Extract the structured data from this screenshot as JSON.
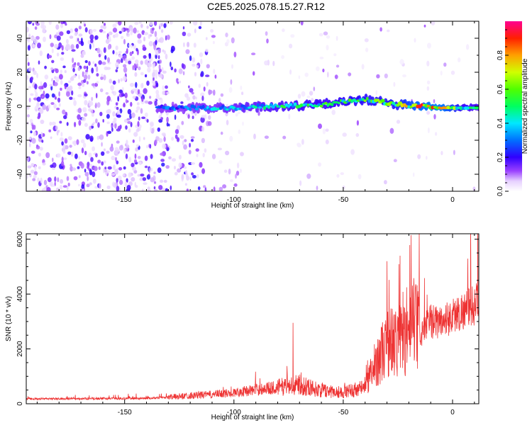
{
  "title": "C2E5.2025.078.15.27.R12",
  "chart_data": [
    {
      "type": "heatmap",
      "xlabel": "Height of straight line (km)",
      "ylabel": "Frequency (Hz)",
      "xlim": [
        -195,
        12
      ],
      "ylim": [
        -50,
        50
      ],
      "xticks": [
        -150,
        -100,
        -50,
        0
      ],
      "yticks": [
        -40,
        -20,
        0,
        20,
        40
      ],
      "colorbar": {
        "label": "Normalized spectral amplitude",
        "range": [
          0,
          1
        ],
        "ticks": [
          0.0,
          0.2,
          0.4,
          0.6,
          0.8
        ],
        "tick_labels": [
          "0.0",
          "0.2",
          "0.4",
          "0.6",
          "0.8"
        ],
        "colors": [
          "#ffffff",
          "#7a00ff",
          "#0000ff",
          "#00e0ff",
          "#00ff40",
          "#c8ff00",
          "#ffa000",
          "#ff0000",
          "#ff0090"
        ]
      },
      "signal_band": [
        {
          "x": -135,
          "y": -1,
          "amp": 0.3
        },
        {
          "x": -120,
          "y": -1,
          "amp": 0.38
        },
        {
          "x": -100,
          "y": -1,
          "amp": 0.42
        },
        {
          "x": -80,
          "y": 0,
          "amp": 0.5
        },
        {
          "x": -60,
          "y": 1,
          "amp": 0.55
        },
        {
          "x": -40,
          "y": 4,
          "amp": 0.6
        },
        {
          "x": -25,
          "y": 1,
          "amp": 0.65
        },
        {
          "x": -15,
          "y": 0,
          "amp": 0.85
        },
        {
          "x": -5,
          "y": -1,
          "amp": 0.88
        },
        {
          "x": 5,
          "y": -1,
          "amp": 0.55
        },
        {
          "x": 12,
          "y": -1,
          "amp": 0.5
        }
      ]
    },
    {
      "type": "line",
      "xlabel": "Height of straight line (km)",
      "ylabel": "SNR (10 * v/v)",
      "xlim": [
        -195,
        12
      ],
      "ylim": [
        0,
        6200
      ],
      "xticks": [
        -150,
        -100,
        -50,
        0
      ],
      "yticks": [
        0,
        2000,
        4000,
        6000
      ],
      "color": "#ee3333",
      "x": [
        -195,
        -180,
        -160,
        -140,
        -130,
        -120,
        -110,
        -100,
        -90,
        -80,
        -70,
        -60,
        -50,
        -40,
        -35,
        -30,
        -25,
        -20,
        -18,
        -15,
        -10,
        -5,
        0,
        5,
        12
      ],
      "y": [
        180,
        180,
        190,
        200,
        240,
        300,
        340,
        400,
        520,
        600,
        700,
        480,
        420,
        600,
        1500,
        2200,
        2300,
        2400,
        3000,
        2500,
        3000,
        3000,
        3200,
        3400,
        3700
      ],
      "peaks": [
        {
          "x": -73,
          "y": 2950
        },
        {
          "x": -30,
          "y": 5200
        },
        {
          "x": -24,
          "y": 5400
        },
        {
          "x": -19,
          "y": 6150
        }
      ]
    }
  ]
}
